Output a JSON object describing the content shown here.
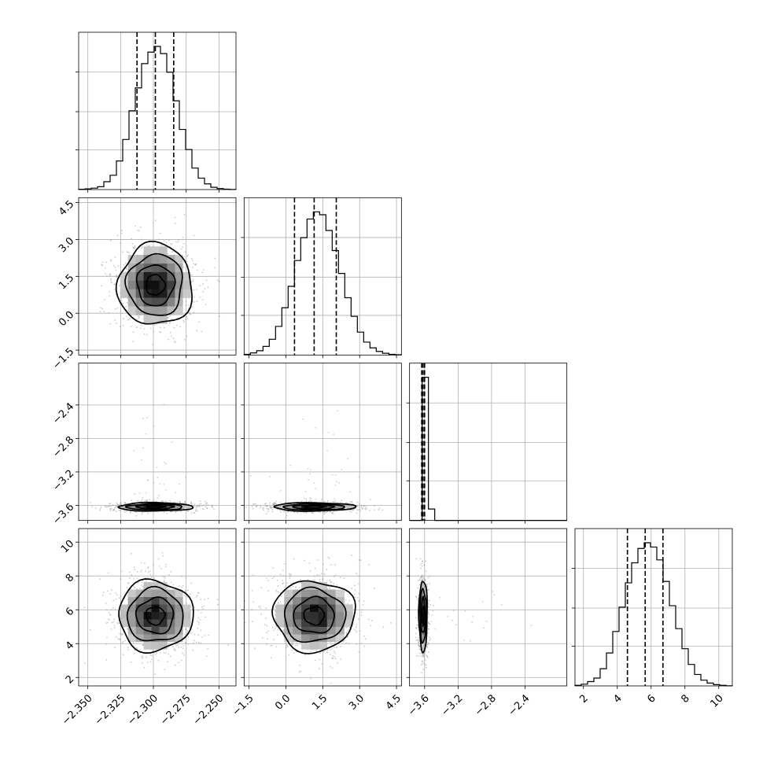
{
  "chart_data": {
    "type": "corner",
    "grid": true,
    "quantiles_shown": [
      0.16,
      0.5,
      0.84
    ],
    "params": [
      {
        "range": [
          -2.357,
          -2.237
        ],
        "ticks": [
          -2.35,
          -2.325,
          -2.3,
          -2.275,
          -2.25
        ],
        "tick_labels": [
          "−2.350",
          "−2.325",
          "−2.300",
          "−2.275",
          "−2.250"
        ],
        "quantiles": [
          -2.3125,
          -2.2985,
          -2.2845
        ],
        "center": -2.2985,
        "sigma": 0.0142,
        "hist": [
          0.2,
          0.5,
          1.0,
          2.0,
          5.5,
          10.0,
          20.0,
          35.0,
          55.0,
          71.0,
          88.0,
          96.0,
          100.0,
          95.0,
          82.0,
          62.0,
          42.0,
          28.0,
          15.0,
          8.0,
          4.0,
          1.6,
          0.7,
          0.3,
          0.1
        ]
      },
      {
        "range": [
          -1.7,
          4.7
        ],
        "ticks": [
          -1.5,
          0.0,
          1.5,
          3.0,
          4.5
        ],
        "tick_labels": [
          "−1.5",
          "0.0",
          "1.5",
          "3.0",
          "4.5"
        ],
        "quantiles": [
          0.35,
          1.15,
          2.05
        ],
        "center": 1.15,
        "sigma": 0.83,
        "hist": [
          0.5,
          1.5,
          3.0,
          6.0,
          11.0,
          20.0,
          33.0,
          48.0,
          66.0,
          82.0,
          95.0,
          100.0,
          98.0,
          87.0,
          73.0,
          57.0,
          40.0,
          27.0,
          16.0,
          9.0,
          5.0,
          2.5,
          1.2,
          0.5,
          0.2
        ]
      },
      {
        "range": [
          -3.78,
          -1.9
        ],
        "ticks": [
          -3.6,
          -3.2,
          -2.8,
          -2.4
        ],
        "tick_labels": [
          "−3.6",
          "−3.2",
          "−2.8",
          "−2.4"
        ],
        "quantiles": [
          -3.635,
          -3.618,
          -3.6
        ],
        "center": -3.618,
        "sigma": 0.025,
        "hist": [
          0.0,
          0.0,
          100.0,
          8.0,
          0.0,
          0.0,
          0.0,
          0.0,
          0.0,
          0.0,
          0.0,
          0.0,
          0.0,
          0.0,
          0.0,
          0.0,
          0.0,
          0.0,
          0.0,
          0.0,
          0.0,
          0.0,
          0.0,
          0.0,
          0.0
        ]
      },
      {
        "range": [
          1.5,
          10.8
        ],
        "ticks": [
          2,
          4,
          6,
          8,
          10
        ],
        "tick_labels": [
          "2",
          "4",
          "6",
          "8",
          "10"
        ],
        "quantiles": [
          4.6,
          5.65,
          6.7
        ],
        "center": 5.65,
        "sigma": 1.05,
        "hist": [
          0.4,
          1.2,
          3.0,
          5.5,
          12.0,
          23.0,
          38.0,
          55.0,
          72.0,
          86.0,
          96.0,
          100.0,
          97.0,
          88.0,
          73.0,
          56.0,
          40.0,
          26.0,
          15.0,
          8.0,
          4.0,
          2.0,
          0.9,
          0.4,
          0.1
        ]
      }
    ]
  }
}
